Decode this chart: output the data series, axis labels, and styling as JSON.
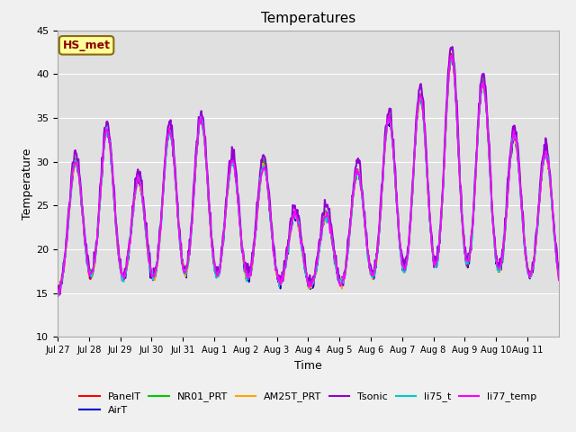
{
  "title": "Temperatures",
  "xlabel": "Time",
  "ylabel": "Temperature",
  "ylim": [
    10,
    45
  ],
  "n_days": 16,
  "xtick_labels": [
    "Jul 27",
    "Jul 28",
    "Jul 29",
    "Jul 30",
    "Jul 31",
    "Aug 1",
    "Aug 2",
    "Aug 3",
    "Aug 4",
    "Aug 5",
    "Aug 6",
    "Aug 7",
    "Aug 8",
    "Aug 9",
    "Aug 10",
    "Aug 11"
  ],
  "ytick_vals": [
    10,
    15,
    20,
    25,
    30,
    35,
    40,
    45
  ],
  "series_names": [
    "PanelT",
    "AirT",
    "NR01_PRT",
    "AM25T_PRT",
    "Tsonic",
    "li75_t",
    "li77_temp"
  ],
  "series_colors": [
    "#ff0000",
    "#0000cd",
    "#00cc00",
    "#ffa500",
    "#9400d3",
    "#00cccc",
    "#ff00ff"
  ],
  "series_lw": [
    1.2,
    1.2,
    1.2,
    1.2,
    1.5,
    1.2,
    1.2
  ],
  "series_offsets": [
    0.0,
    -0.2,
    0.1,
    -0.1,
    0.5,
    -0.15,
    0.0
  ],
  "day_peaks": [
    30,
    33.5,
    28,
    33.5,
    35,
    30,
    29.5,
    24,
    24,
    29,
    35,
    37.5,
    42,
    39,
    33,
    31
  ],
  "night_min": 14.5,
  "annotation_text": "HS_met",
  "annotation_color": "#8b0000",
  "annotation_bg": "#ffff99",
  "annotation_border": "#8b6914",
  "plot_bg": "#e8e8e8",
  "axes_bg": "#f0f0f0",
  "band_ranges": [
    [
      35,
      45
    ],
    [
      25,
      35
    ],
    [
      15,
      25
    ]
  ],
  "band_color": "#e0e0e0",
  "grid_color": "#ffffff"
}
